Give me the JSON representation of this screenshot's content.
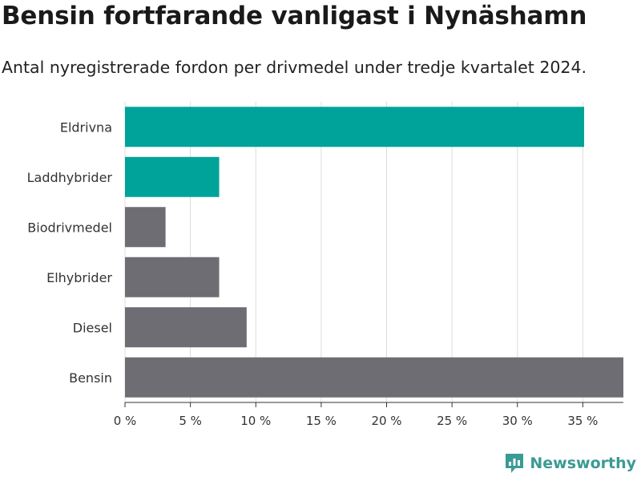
{
  "title": "Bensin fortfarande vanligast i Nynäshamn",
  "subtitle": "Antal nyregistrerade fordon per drivmedel under tredje kvartalet 2024.",
  "brand": {
    "name": "Newsworthy",
    "icon": "newsworthy-logo-icon",
    "color": "#3b9a94"
  },
  "chart_data": {
    "type": "bar",
    "orientation": "horizontal",
    "categories": [
      "Eldrivna",
      "Laddhybrider",
      "Biodrivmedel",
      "Elhybrider",
      "Diesel",
      "Bensin"
    ],
    "values": [
      35.1,
      7.2,
      3.1,
      7.2,
      9.3,
      38.1
    ],
    "colors": [
      "#00a39a",
      "#00a39a",
      "#6e6d73",
      "#6e6d73",
      "#6e6d73",
      "#6e6d73"
    ],
    "xticks": [
      0,
      5,
      10,
      15,
      20,
      25,
      30,
      35
    ],
    "tick_labels": [
      "0 %",
      "5 %",
      "10 %",
      "15 %",
      "20 %",
      "25 %",
      "30 %",
      "35 %"
    ],
    "xlim": [
      0,
      38.1
    ],
    "grid": true,
    "xlabel": "",
    "ylabel": ""
  }
}
